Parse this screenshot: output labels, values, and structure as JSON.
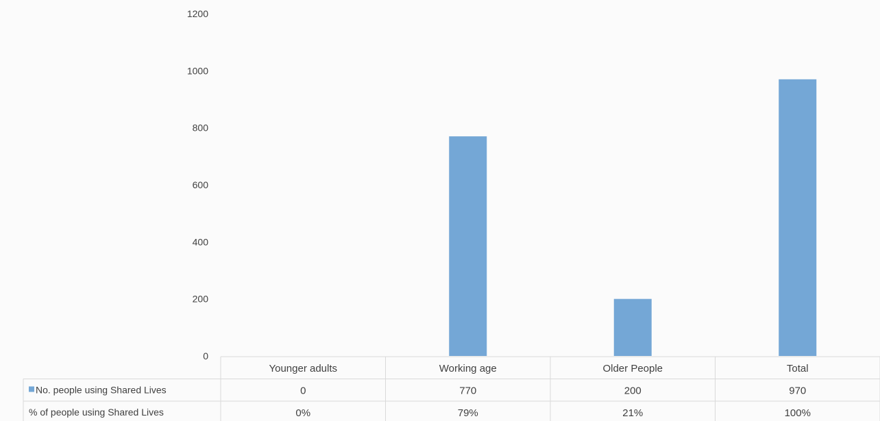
{
  "chart_data": {
    "type": "bar",
    "categories": [
      "Younger adults",
      "Working age",
      "Older People",
      "Total"
    ],
    "series": [
      {
        "name": "No. people using Shared Lives",
        "values": [
          0,
          770,
          200,
          970
        ],
        "color": "#74a7d6"
      }
    ],
    "table_rows": [
      {
        "label": "No. people using Shared Lives",
        "cells": [
          "0",
          "770",
          "200",
          "970"
        ],
        "has_legend_key": true
      },
      {
        "label": "% of people using Shared Lives",
        "cells": [
          "0%",
          "79%",
          "21%",
          "100%"
        ],
        "has_legend_key": false
      }
    ],
    "ylim": [
      0,
      1200
    ],
    "yticks": [
      0,
      200,
      400,
      600,
      800,
      1000,
      1200
    ],
    "title": "",
    "xlabel": "",
    "ylabel": "",
    "grid": false,
    "legend": "data-table"
  }
}
